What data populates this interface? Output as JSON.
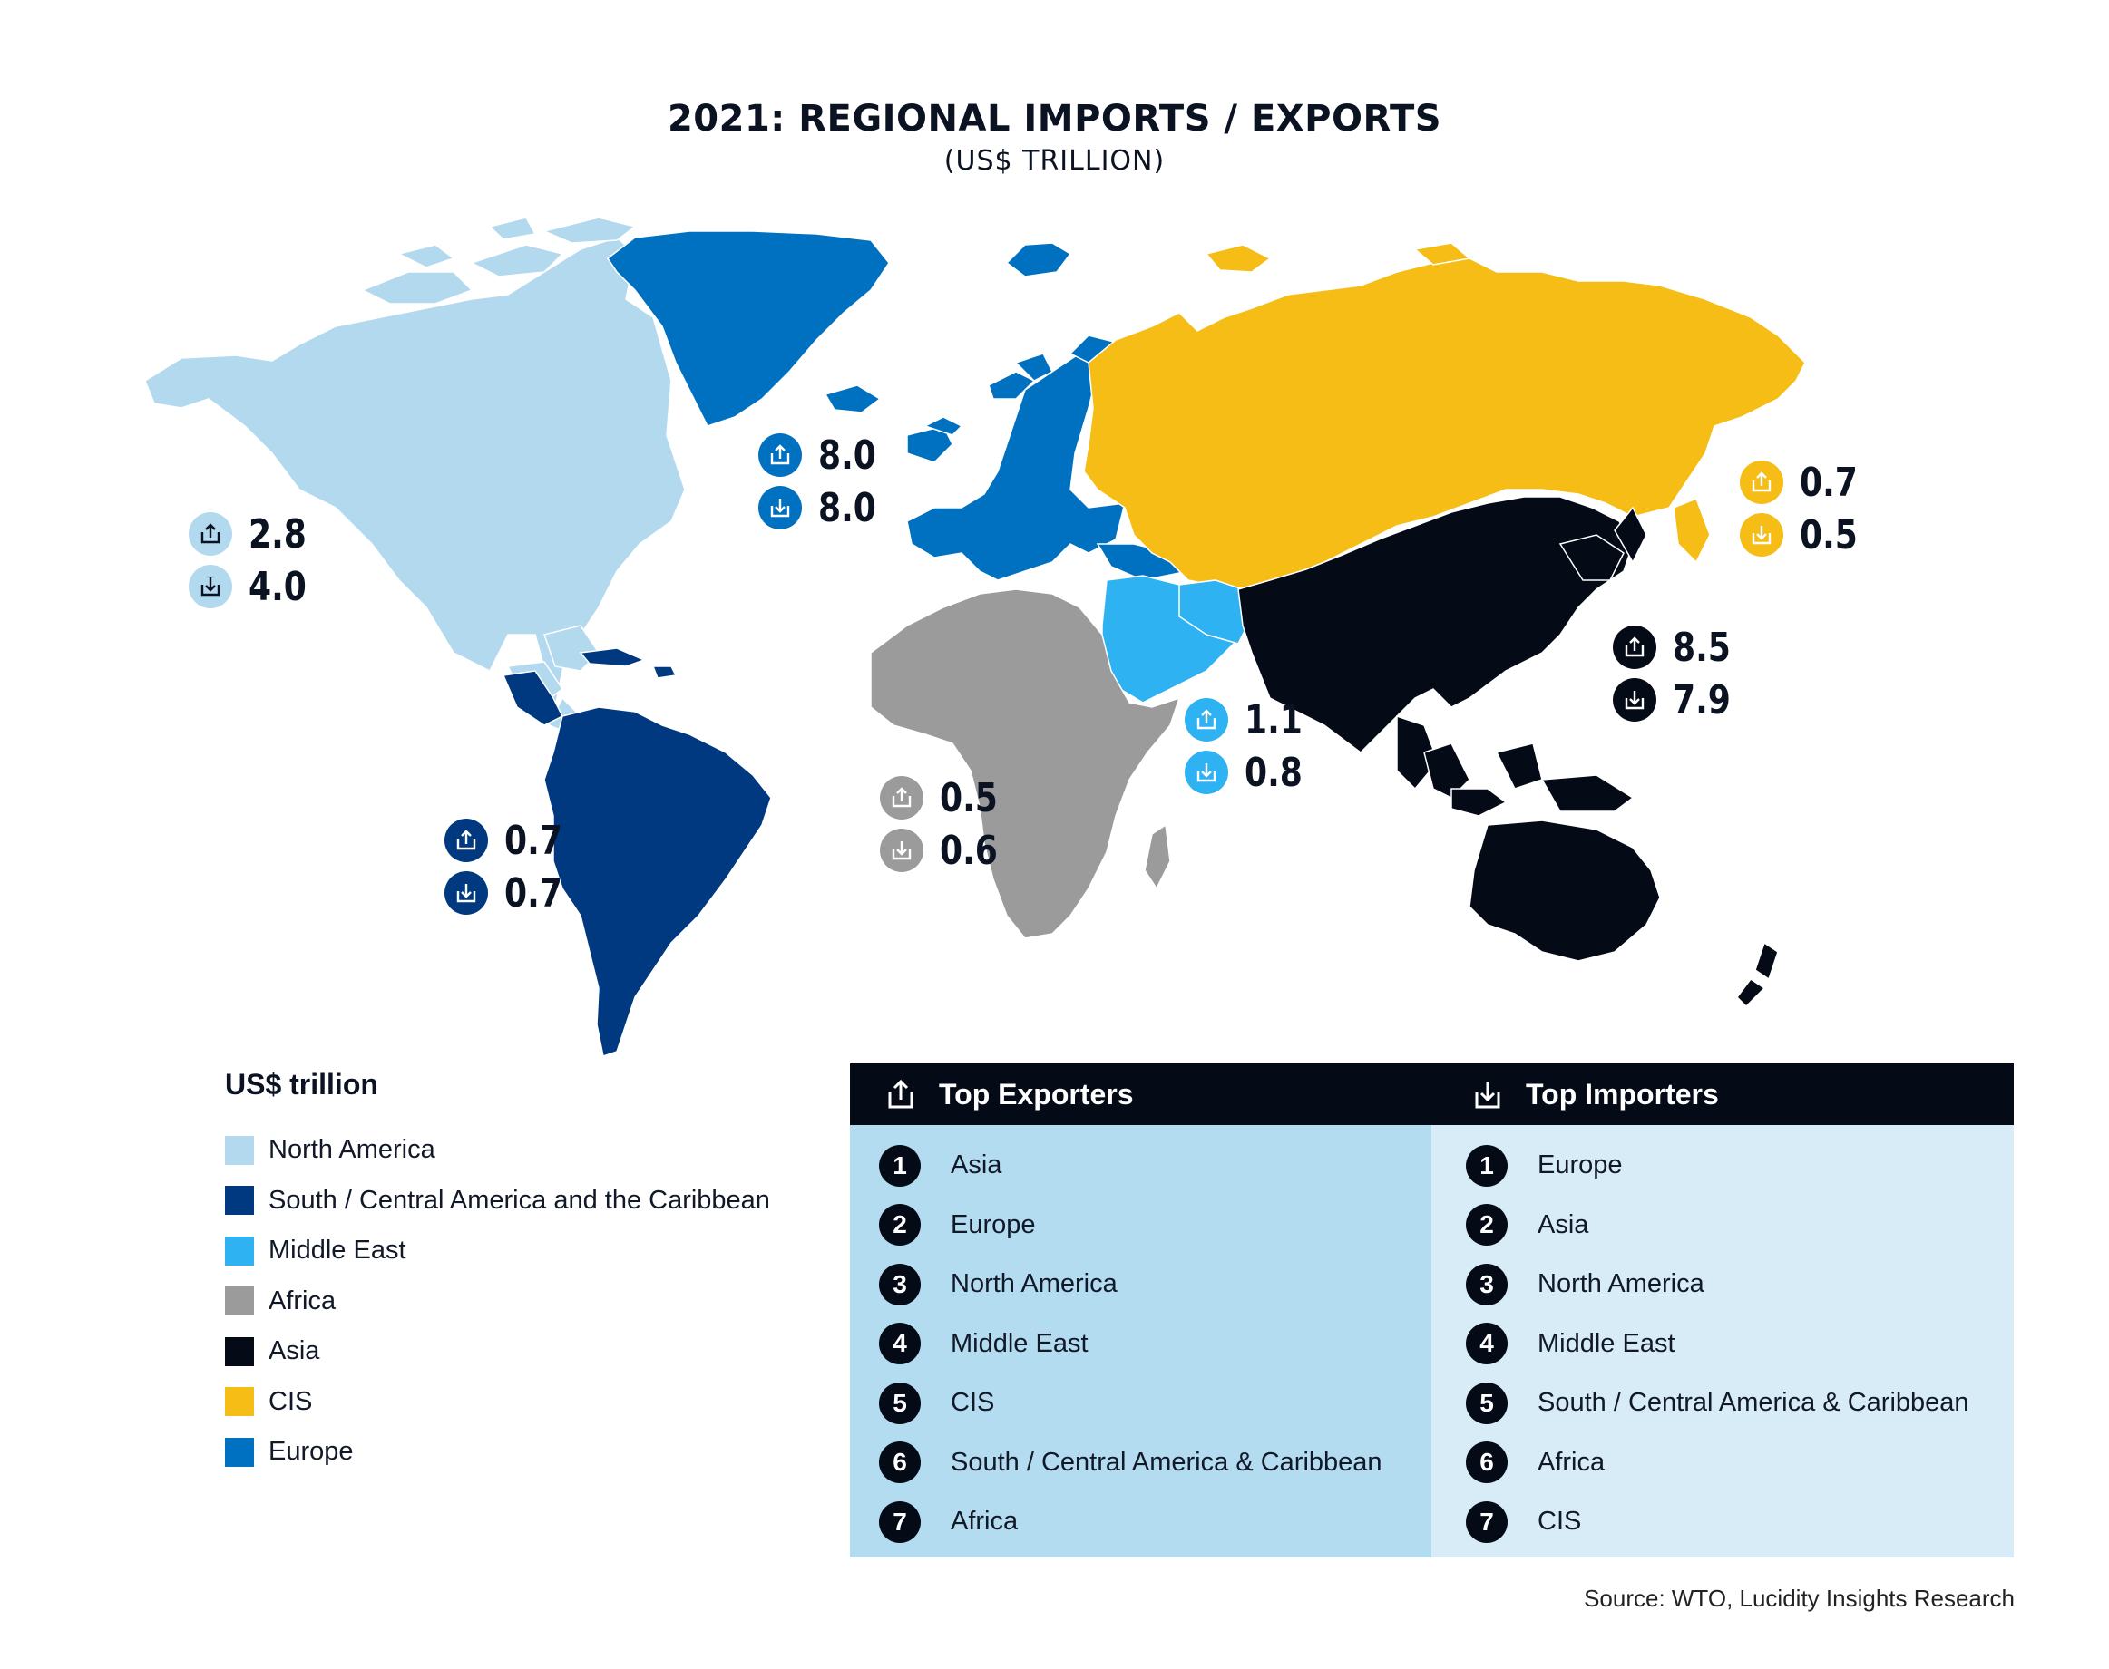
{
  "title": "2021: REGIONAL IMPORTS / EXPORTS",
  "subtitle": "(US$ TRILLION)",
  "colors": {
    "north_america": "#b3d9ef",
    "south_central_america": "#00397f",
    "middle_east": "#2fb2f2",
    "africa": "#9b9b9b",
    "asia": "#050a17",
    "cis": "#f5bd16",
    "europe": "#0070c0"
  },
  "regions": [
    {
      "id": "north-america",
      "name": "North America",
      "exports": "2.8",
      "imports": "4.0",
      "color": "#b3d9ef"
    },
    {
      "id": "europe",
      "name": "Europe",
      "exports": "8.0",
      "imports": "8.0",
      "color": "#0070c0"
    },
    {
      "id": "cis",
      "name": "CIS",
      "exports": "0.7",
      "imports": "0.5",
      "color": "#f5bd16"
    },
    {
      "id": "asia",
      "name": "Asia",
      "exports": "8.5",
      "imports": "7.9",
      "color": "#050a17"
    },
    {
      "id": "middle-east",
      "name": "Middle East",
      "exports": "1.1",
      "imports": "0.8",
      "color": "#2fb2f2"
    },
    {
      "id": "africa",
      "name": "Africa",
      "exports": "0.5",
      "imports": "0.6",
      "color": "#9b9b9b"
    },
    {
      "id": "south-central-america",
      "name": "South / Central America and the Caribbean",
      "exports": "0.7",
      "imports": "0.7",
      "color": "#00397f"
    }
  ],
  "legend": {
    "title": "US$ trillion",
    "items": [
      {
        "label": "North America",
        "color": "#b3d9ef"
      },
      {
        "label": "South / Central America and the Caribbean",
        "color": "#00397f"
      },
      {
        "label": "Middle East",
        "color": "#2fb2f2"
      },
      {
        "label": "Africa",
        "color": "#9b9b9b"
      },
      {
        "label": "Asia",
        "color": "#050a17"
      },
      {
        "label": "CIS",
        "color": "#f5bd16"
      },
      {
        "label": "Europe",
        "color": "#0070c0"
      }
    ]
  },
  "rankings": {
    "exporters": {
      "title": "Top Exporters",
      "background": "#b4dcf0",
      "items": [
        "Asia",
        "Europe",
        "North America",
        "Middle East",
        "CIS",
        "South / Central America & Caribbean",
        "Africa"
      ]
    },
    "importers": {
      "title": "Top Importers",
      "background": "#d8ecf8",
      "items": [
        "Europe",
        "Asia",
        "North America",
        "Middle East",
        "South / Central America & Caribbean",
        "Africa",
        "CIS"
      ]
    },
    "ranks": [
      "1",
      "2",
      "3",
      "4",
      "5",
      "6",
      "7"
    ]
  },
  "source": "Source: WTO, Lucidity Insights Research"
}
